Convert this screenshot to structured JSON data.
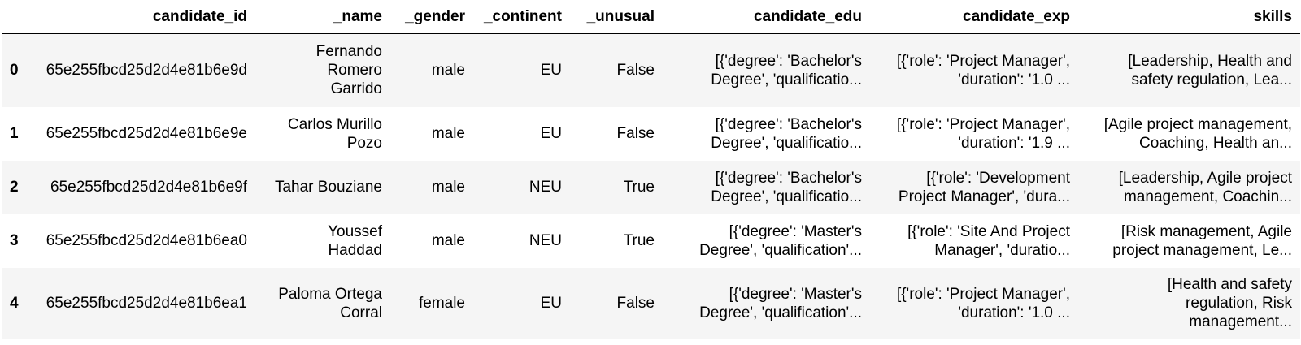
{
  "table": {
    "index_header": "",
    "columns": [
      "candidate_id",
      "_name",
      "_gender",
      "_continent",
      "_unusual",
      "candidate_edu",
      "candidate_exp",
      "skills"
    ],
    "rows": [
      {
        "index": "0",
        "cells": [
          "65e255fbcd25d2d4e81b6e9d",
          "Fernando Romero Garrido",
          "male",
          "EU",
          "False",
          "[{'degree': 'Bachelor's Degree', 'qualificatio...",
          "[{'role': 'Project Manager', 'duration': '1.0 ...",
          "[Leadership, Health and safety regulation, Lea..."
        ]
      },
      {
        "index": "1",
        "cells": [
          "65e255fbcd25d2d4e81b6e9e",
          "Carlos Murillo Pozo",
          "male",
          "EU",
          "False",
          "[{'degree': 'Bachelor's Degree', 'qualificatio...",
          "[{'role': 'Project Manager', 'duration': '1.9 ...",
          "[Agile project management, Coaching, Health an..."
        ]
      },
      {
        "index": "2",
        "cells": [
          "65e255fbcd25d2d4e81b6e9f",
          "Tahar Bouziane",
          "male",
          "NEU",
          "True",
          "[{'degree': 'Bachelor's Degree', 'qualificatio...",
          "[{'role': 'Development Project Manager', 'dura...",
          "[Leadership, Agile project management, Coachin..."
        ]
      },
      {
        "index": "3",
        "cells": [
          "65e255fbcd25d2d4e81b6ea0",
          "Youssef Haddad",
          "male",
          "NEU",
          "True",
          "[{'degree': 'Master's Degree', 'qualification'...",
          "[{'role': 'Site And Project Manager', 'duratio...",
          "[Risk management, Agile project management, Le..."
        ]
      },
      {
        "index": "4",
        "cells": [
          "65e255fbcd25d2d4e81b6ea1",
          "Paloma Ortega Corral",
          "female",
          "EU",
          "False",
          "[{'degree': 'Master's Degree', 'qualification'...",
          "[{'role': 'Project Manager', 'duration': '1.0 ...",
          "[Health and safety regulation, Risk management..."
        ]
      }
    ]
  }
}
